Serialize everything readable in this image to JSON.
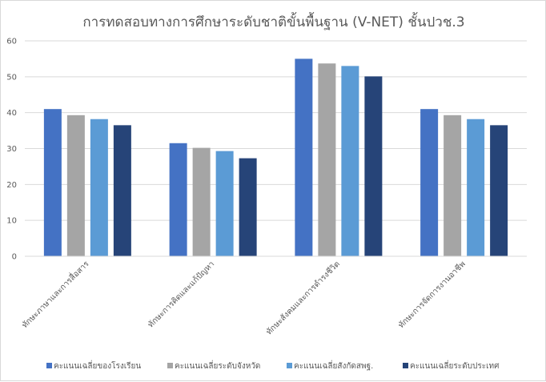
{
  "chart_data": {
    "type": "bar",
    "title": "การทดสอบทางการศึกษาระดับชาติขั้นพื้นฐาน (V-NET) ชั้นปวช.3",
    "xlabel": "",
    "ylabel": "",
    "ylim": [
      0,
      60
    ],
    "yticks": [
      0,
      10,
      20,
      30,
      40,
      50,
      60
    ],
    "grid": true,
    "legend_position": "bottom",
    "categories": [
      "ทักษะภาษาและการสื่อสาร",
      "ทักษะการคิดและแก้ปัญหา",
      "ทักษะสังคมและการดำรงชีวิต",
      "ทักษะการจัดการงานอาชีพ"
    ],
    "series": [
      {
        "name": "คะแนนเฉลี่ยของโรงเรียน",
        "color": "#4472c4",
        "values": [
          41,
          31.5,
          55,
          41
        ]
      },
      {
        "name": "คะแนนเฉลี่ยระดับจังหวัด",
        "color": "#a5a5a5",
        "values": [
          39.3,
          30.2,
          53.7,
          39.3
        ]
      },
      {
        "name": "คะแนนเฉลี่ยสังกัดสพฐ.",
        "color": "#5b9bd5",
        "values": [
          38.2,
          29.3,
          53,
          38.2
        ]
      },
      {
        "name": "คะแนนเฉลี่ยระดับประเทศ",
        "color": "#264478",
        "values": [
          36.5,
          27.3,
          50.1,
          36.5
        ]
      }
    ]
  }
}
